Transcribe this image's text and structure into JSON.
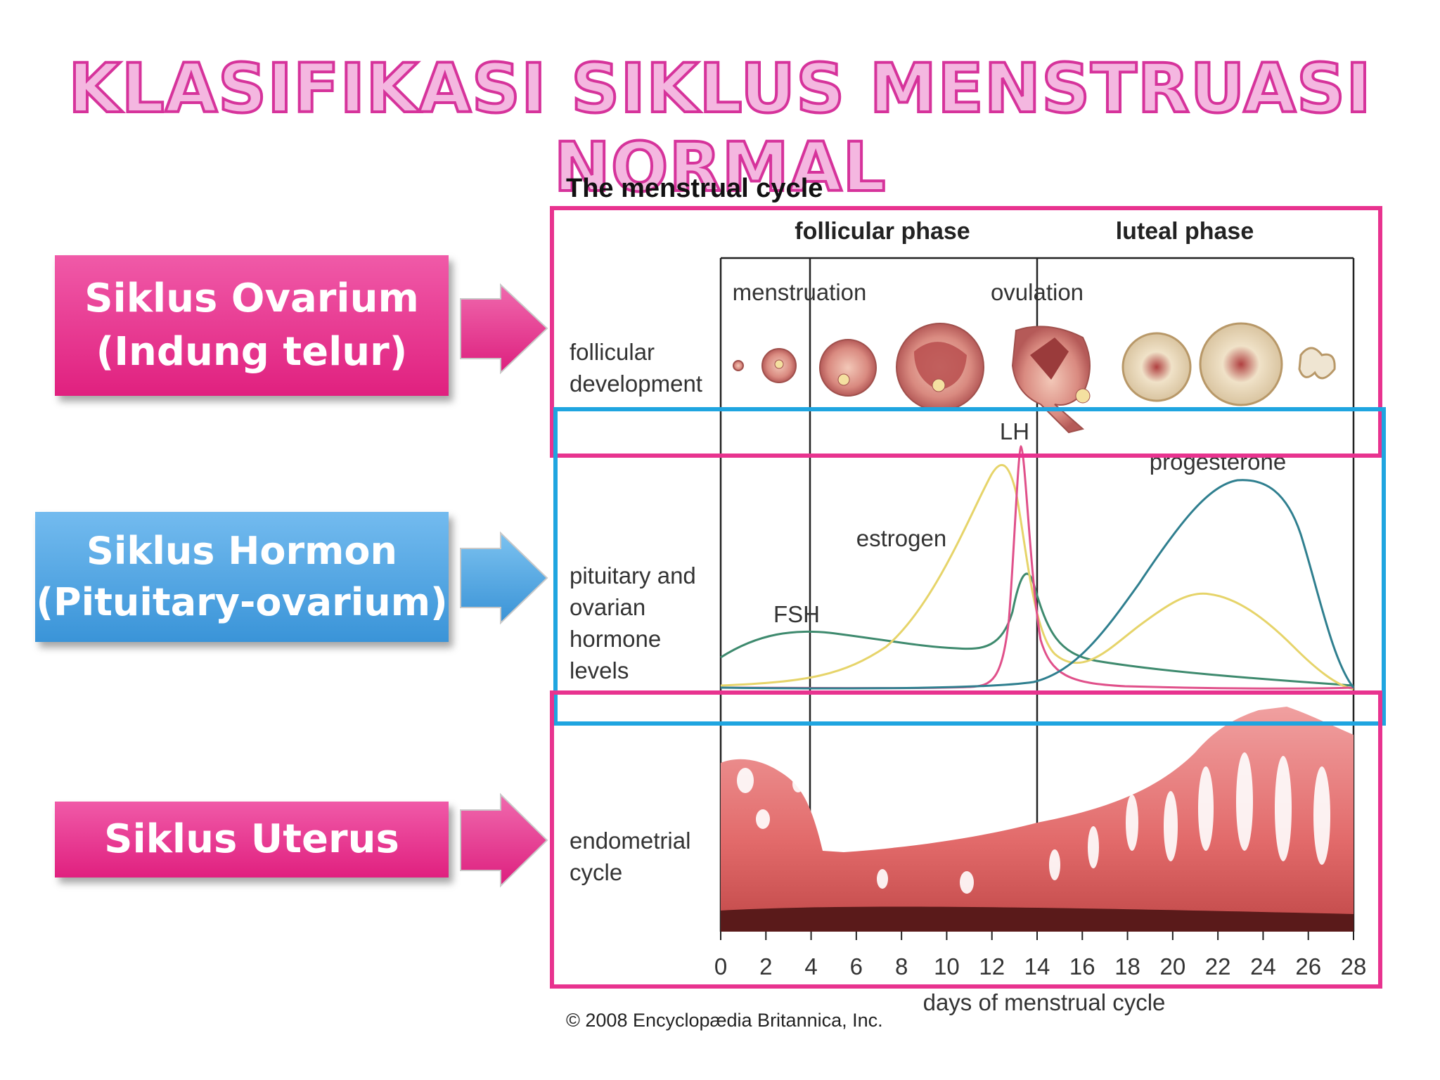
{
  "slide": {
    "title": "KLASIFIKASI SIKLUS MENSTRUASI NORMAL"
  },
  "labels": [
    {
      "id": "ovarium",
      "line1": "Siklus Ovarium",
      "line2": "(Indung telur)",
      "color": "#e8338f"
    },
    {
      "id": "hormon",
      "line1": "Siklus Hormon",
      "line2": "(Pituitary-ovarium)",
      "color": "#4aa3e0"
    },
    {
      "id": "uterus",
      "line1": "Siklus Uterus",
      "line2": "",
      "color": "#e8338f"
    }
  ],
  "diagram": {
    "title": "The menstrual cycle",
    "phases": [
      "follicular phase",
      "luteal phase"
    ],
    "events": [
      "menstruation",
      "ovulation"
    ],
    "rows": {
      "follicular": [
        "follicular",
        "development"
      ],
      "hormone": [
        "pituitary and",
        "ovarian",
        "hormone",
        "levels"
      ],
      "endometrial": [
        "endometrial",
        "cycle"
      ]
    },
    "hormones": [
      "FSH",
      "estrogen",
      "LH",
      "progesterone"
    ],
    "xaxis": {
      "label": "days of menstrual cycle",
      "ticks": [
        "0",
        "2",
        "4",
        "6",
        "8",
        "10",
        "12",
        "14",
        "16",
        "18",
        "20",
        "22",
        "24",
        "26",
        "28"
      ]
    },
    "copyright": "© 2008 Encyclopædia Britannica, Inc.",
    "colors": {
      "highlight_pink": "#e8338f",
      "highlight_blue": "#1fa5e0",
      "fsh": "#3e8a6e",
      "estrogen": "#e6d46a",
      "lh": "#e0508a",
      "progesterone": "#2f7f8f",
      "tissue": "#e06a6a"
    }
  }
}
